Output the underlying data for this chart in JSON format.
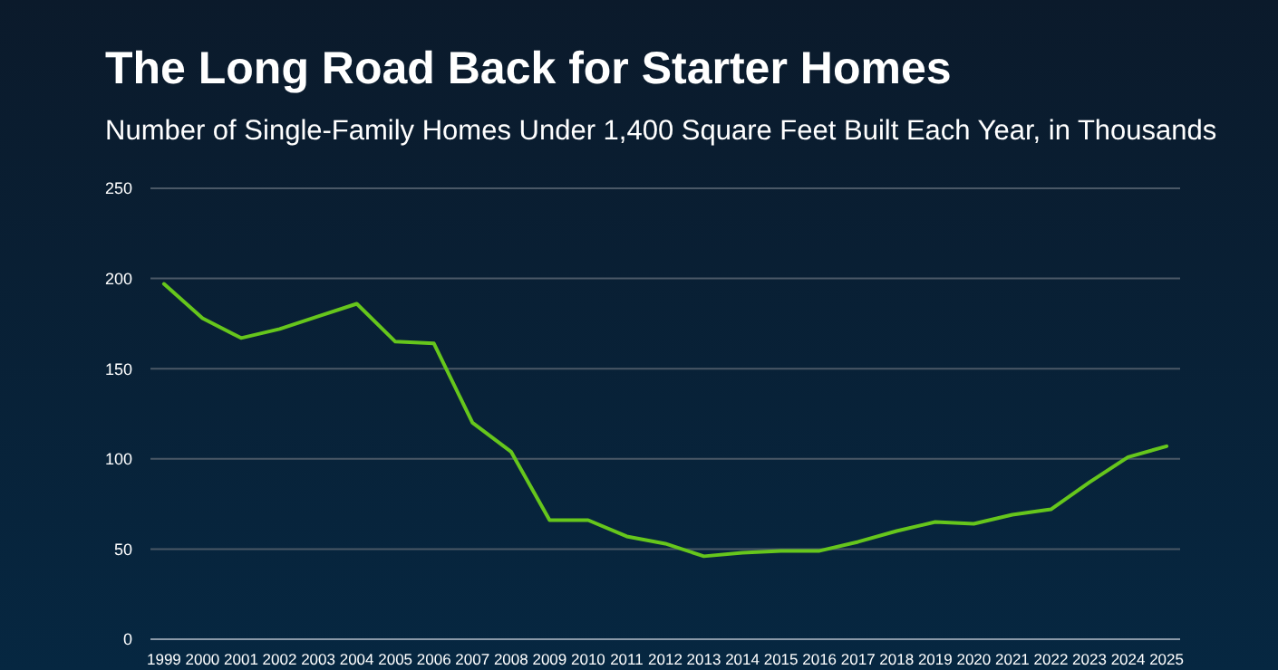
{
  "chart_data": {
    "type": "line",
    "title": "The Long Road Back for Starter Homes",
    "subtitle": "Number of Single-Family Homes Under 1,400 Square Feet Built Each Year, in Thousands",
    "categories": [
      "1999",
      "2000",
      "2001",
      "2002",
      "2003",
      "2004",
      "2005",
      "2006",
      "2007",
      "2008",
      "2009",
      "2010",
      "2011",
      "2012",
      "2013",
      "2014",
      "2015",
      "2016",
      "2017",
      "2018",
      "2019",
      "2020",
      "2021",
      "2022",
      "2023",
      "2024",
      "2025"
    ],
    "series": [
      {
        "color": "#66c61c",
        "values": [
          197,
          178,
          167,
          172,
          179,
          186,
          165,
          164,
          120,
          104,
          66,
          66,
          57,
          53,
          46,
          48,
          49,
          49,
          54,
          60,
          65,
          64,
          69,
          72,
          87,
          101,
          107
        ]
      }
    ],
    "ylim": [
      0,
      250
    ],
    "yticks": [
      0,
      50,
      100,
      150,
      200,
      250
    ],
    "grid": "y",
    "marker": "none",
    "line_style": "solid"
  }
}
